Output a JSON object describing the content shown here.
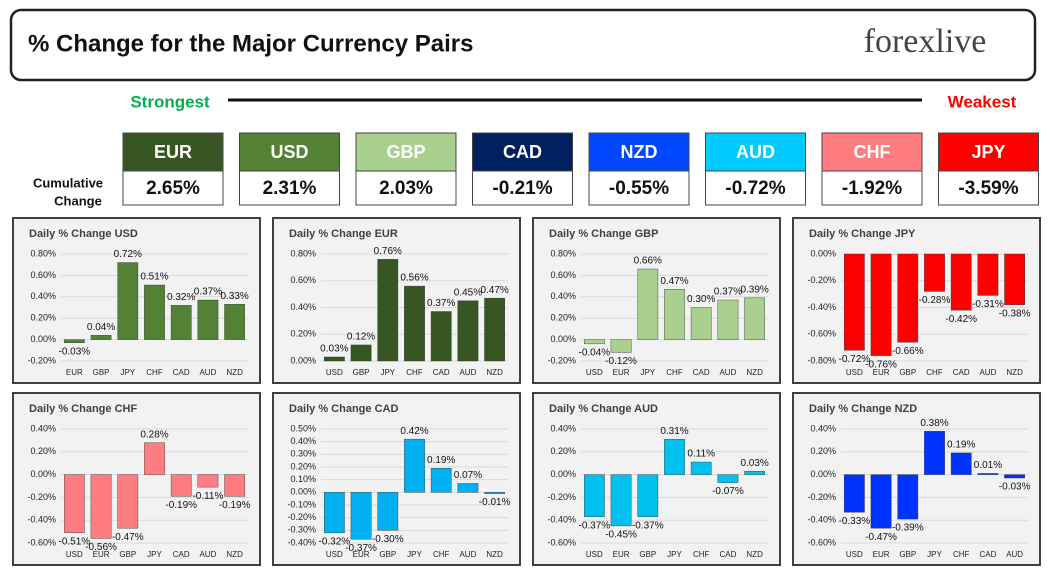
{
  "header": {
    "title": "% Change for the Major Currency Pairs",
    "logo": "forexlive"
  },
  "legend": {
    "strongest": "Strongest",
    "weakest": "Weakest",
    "row_label": [
      "Cumulative",
      "Change"
    ]
  },
  "rankings": [
    {
      "currency": "EUR",
      "value": "2.65%",
      "color": "#375623"
    },
    {
      "currency": "USD",
      "value": "2.31%",
      "color": "#548235"
    },
    {
      "currency": "GBP",
      "value": "2.03%",
      "color": "#a9d08e"
    },
    {
      "currency": "CAD",
      "value": "-0.21%",
      "color": "#002060"
    },
    {
      "currency": "NZD",
      "value": "-0.55%",
      "color": "#0047ff"
    },
    {
      "currency": "AUD",
      "value": "-0.72%",
      "color": "#00ccff"
    },
    {
      "currency": "CHF",
      "value": "-1.92%",
      "color": "#ff7c80"
    },
    {
      "currency": "JPY",
      "value": "-3.59%",
      "color": "#ff0000"
    }
  ],
  "chart_data": [
    {
      "type": "bar",
      "title": "Daily % Change USD",
      "color": "#548235",
      "categories": [
        "EUR",
        "GBP",
        "JPY",
        "CHF",
        "CAD",
        "AUD",
        "NZD"
      ],
      "values": [
        -0.03,
        0.04,
        0.72,
        0.51,
        0.32,
        0.37,
        0.33
      ],
      "value_labels": [
        "-0.03%",
        "0.04%",
        "0.72%",
        "0.51%",
        "0.32%",
        "0.37%",
        "0.33%"
      ],
      "ylim": [
        -0.2,
        0.8
      ],
      "yticks": [
        {
          "value": -0.2,
          "label": "-0.20%"
        },
        {
          "value": 0,
          "label": "0.00%"
        },
        {
          "value": 0.2,
          "label": "0.20%"
        },
        {
          "value": 0.4,
          "label": "0.40%"
        },
        {
          "value": 0.6,
          "label": "0.60%"
        },
        {
          "value": 0.8,
          "label": "0.80%"
        }
      ],
      "grid": true
    },
    {
      "type": "bar",
      "title": "Daily % Change EUR",
      "color": "#375623",
      "categories": [
        "USD",
        "GBP",
        "JPY",
        "CHF",
        "CAD",
        "AUD",
        "NZD"
      ],
      "values": [
        0.03,
        0.12,
        0.76,
        0.56,
        0.37,
        0.45,
        0.47
      ],
      "value_labels": [
        "0.03%",
        "0.12%",
        "0.76%",
        "0.56%",
        "0.37%",
        "0.45%",
        "0.47%"
      ],
      "ylim": [
        0,
        0.8
      ],
      "yticks": [
        {
          "value": 0,
          "label": "0.00%"
        },
        {
          "value": 0.2,
          "label": "0.20%"
        },
        {
          "value": 0.4,
          "label": "0.40%"
        },
        {
          "value": 0.6,
          "label": "0.60%"
        },
        {
          "value": 0.8,
          "label": "0.80%"
        }
      ],
      "grid": true
    },
    {
      "type": "bar",
      "title": "Daily % Change GBP",
      "color": "#a9d08e",
      "categories": [
        "USD",
        "EUR",
        "JPY",
        "CHF",
        "CAD",
        "AUD",
        "NZD"
      ],
      "values": [
        -0.04,
        -0.12,
        0.66,
        0.47,
        0.3,
        0.37,
        0.39
      ],
      "value_labels": [
        "-0.04%",
        "-0.12%",
        "0.66%",
        "0.47%",
        "0.30%",
        "0.37%",
        "0.39%"
      ],
      "ylim": [
        -0.2,
        0.8
      ],
      "yticks": [
        {
          "value": -0.2,
          "label": "-0.20%"
        },
        {
          "value": 0,
          "label": "0.00%"
        },
        {
          "value": 0.2,
          "label": "0.20%"
        },
        {
          "value": 0.4,
          "label": "0.40%"
        },
        {
          "value": 0.6,
          "label": "0.60%"
        },
        {
          "value": 0.8,
          "label": "0.80%"
        }
      ],
      "grid": true
    },
    {
      "type": "bar",
      "title": "Daily % Change JPY",
      "color": "#ff0000",
      "categories": [
        "USD",
        "EUR",
        "GBP",
        "CHF",
        "CAD",
        "AUD",
        "NZD"
      ],
      "values": [
        -0.72,
        -0.76,
        -0.66,
        -0.28,
        -0.42,
        -0.31,
        -0.38
      ],
      "value_labels": [
        "-0.72%",
        "-0.76%",
        "-0.66%",
        "-0.28%",
        "-0.42%",
        "-0.31%",
        "-0.38%"
      ],
      "ylim": [
        -0.8,
        0
      ],
      "yticks": [
        {
          "value": 0,
          "label": "0.00%"
        },
        {
          "value": -0.2,
          "label": "-0.20%"
        },
        {
          "value": -0.4,
          "label": "-0.40%"
        },
        {
          "value": -0.6,
          "label": "-0.60%"
        },
        {
          "value": -0.8,
          "label": "-0.80%"
        }
      ],
      "grid": true
    },
    {
      "type": "bar",
      "title": "Daily % Change CHF",
      "color": "#ff7c80",
      "categories": [
        "USD",
        "EUR",
        "GBP",
        "JPY",
        "CAD",
        "AUD",
        "NZD"
      ],
      "values": [
        -0.51,
        -0.56,
        -0.47,
        0.28,
        -0.19,
        -0.11,
        -0.19
      ],
      "value_labels": [
        "-0.51%",
        "-0.56%",
        "-0.47%",
        "0.28%",
        "-0.19%",
        "-0.11%",
        "-0.19%"
      ],
      "ylim": [
        -0.6,
        0.4
      ],
      "yticks": [
        {
          "value": -0.6,
          "label": "-0.60%"
        },
        {
          "value": -0.4,
          "label": "-0.40%"
        },
        {
          "value": -0.2,
          "label": "-0.20%"
        },
        {
          "value": 0,
          "label": "0.00%"
        },
        {
          "value": 0.2,
          "label": "0.20%"
        },
        {
          "value": 0.4,
          "label": "0.40%"
        }
      ],
      "grid": true
    },
    {
      "type": "bar",
      "title": "Daily % Change CAD",
      "color": "#00b0f0",
      "categories": [
        "USD",
        "EUR",
        "GBP",
        "JPY",
        "CHF",
        "AUD",
        "NZD"
      ],
      "values": [
        -0.32,
        -0.37,
        -0.3,
        0.42,
        0.19,
        0.07,
        -0.01
      ],
      "value_labels": [
        "-0.32%",
        "-0.37%",
        "-0.30%",
        "0.42%",
        "0.19%",
        "0.07%",
        "-0.01%"
      ],
      "ylim": [
        -0.4,
        0.5
      ],
      "yticks": [
        {
          "value": -0.4,
          "label": "-0.40%"
        },
        {
          "value": -0.3,
          "label": "-0.30%"
        },
        {
          "value": -0.2,
          "label": "-0.20%"
        },
        {
          "value": -0.1,
          "label": "-0.10%"
        },
        {
          "value": 0,
          "label": "0.00%"
        },
        {
          "value": 0.1,
          "label": "0.10%"
        },
        {
          "value": 0.2,
          "label": "0.20%"
        },
        {
          "value": 0.3,
          "label": "0.30%"
        },
        {
          "value": 0.4,
          "label": "0.40%"
        },
        {
          "value": 0.5,
          "label": "0.50%"
        }
      ],
      "grid": true
    },
    {
      "type": "bar",
      "title": "Daily % Change AUD",
      "color": "#00c0f0",
      "categories": [
        "USD",
        "EUR",
        "GBP",
        "JPY",
        "CHF",
        "CAD",
        "NZD"
      ],
      "values": [
        -0.37,
        -0.45,
        -0.37,
        0.31,
        0.11,
        -0.07,
        0.03
      ],
      "value_labels": [
        "-0.37%",
        "-0.45%",
        "-0.37%",
        "0.31%",
        "0.11%",
        "-0.07%",
        "0.03%"
      ],
      "ylim": [
        -0.6,
        0.4
      ],
      "yticks": [
        {
          "value": -0.6,
          "label": "-0.60%"
        },
        {
          "value": -0.4,
          "label": "-0.40%"
        },
        {
          "value": -0.2,
          "label": "-0.20%"
        },
        {
          "value": 0,
          "label": "0.00%"
        },
        {
          "value": 0.2,
          "label": "0.20%"
        },
        {
          "value": 0.4,
          "label": "0.40%"
        }
      ],
      "grid": true
    },
    {
      "type": "bar",
      "title": "Daily % Change NZD",
      "color": "#0033ff",
      "categories": [
        "USD",
        "EUR",
        "GBP",
        "JPY",
        "CHF",
        "CAD",
        "AUD"
      ],
      "values": [
        -0.33,
        -0.47,
        -0.39,
        0.38,
        0.19,
        0.01,
        -0.03
      ],
      "value_labels": [
        "-0.33%",
        "-0.47%",
        "-0.39%",
        "0.38%",
        "0.19%",
        "0.01%",
        "-0.03%"
      ],
      "ylim": [
        -0.6,
        0.4
      ],
      "yticks": [
        {
          "value": -0.6,
          "label": "-0.60%"
        },
        {
          "value": -0.4,
          "label": "-0.40%"
        },
        {
          "value": -0.2,
          "label": "-0.20%"
        },
        {
          "value": 0,
          "label": "0.00%"
        },
        {
          "value": 0.2,
          "label": "0.20%"
        },
        {
          "value": 0.4,
          "label": "0.40%"
        }
      ],
      "grid": true
    }
  ]
}
